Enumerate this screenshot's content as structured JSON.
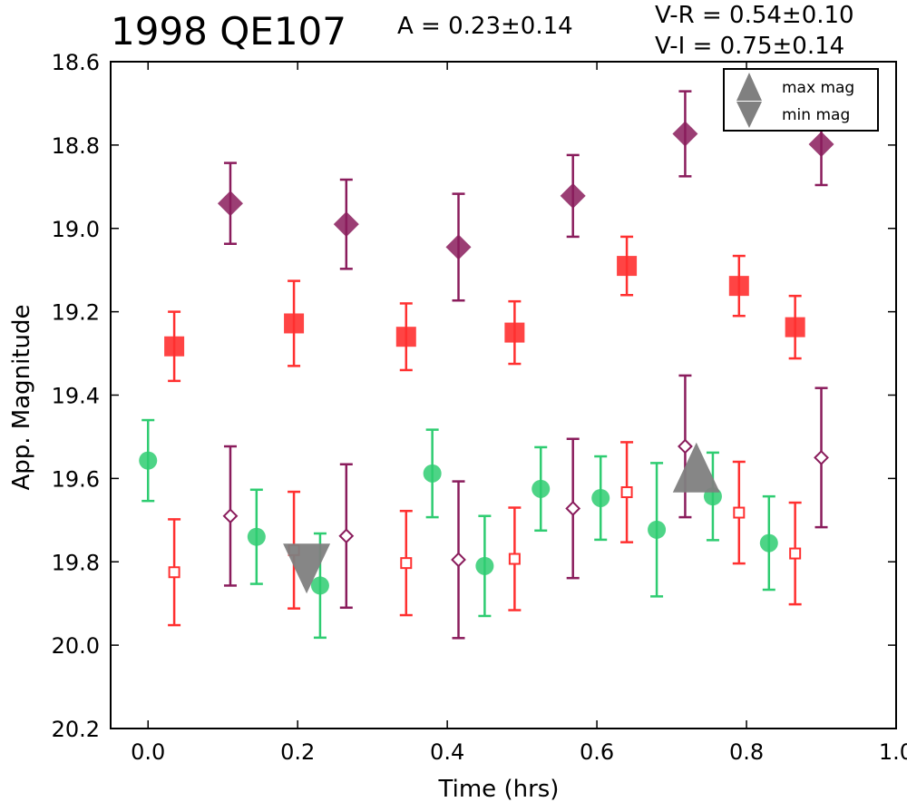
{
  "header": {
    "title": "1998 QE107",
    "amplitude": "A  = 0.23±0.14",
    "color_vr": "V-R  = 0.54±0.10",
    "color_vi": "V-I  = 0.75±0.14"
  },
  "chart_data": {
    "type": "scatter",
    "xlabel": "Time (hrs)",
    "ylabel": "App. Magnitude",
    "xlim": [
      -0.05,
      1.0
    ],
    "ylim": [
      20.2,
      18.6
    ],
    "y_inverted": true,
    "x_ticks": [
      "0.0",
      "0.2",
      "0.4",
      "0.6",
      "0.8",
      "1.0"
    ],
    "y_ticks": [
      "18.6",
      "18.8",
      "19.0",
      "19.2",
      "19.4",
      "19.6",
      "19.8",
      "20.0",
      "20.2"
    ],
    "legend": {
      "position": "top-right",
      "entries": [
        {
          "label": "max mag",
          "marker": "triangle-up",
          "color": "#808080"
        },
        {
          "label": "min mag",
          "marker": "triangle-down",
          "color": "#808080"
        }
      ]
    },
    "series": [
      {
        "marker": "diamond-filled",
        "color": "#8a1c5c",
        "points": [
          {
            "x": 0.11,
            "y": 18.94,
            "err": 0.097
          },
          {
            "x": 0.265,
            "y": 18.99,
            "err": 0.107
          },
          {
            "x": 0.415,
            "y": 19.045,
            "err": 0.128
          },
          {
            "x": 0.568,
            "y": 18.922,
            "err": 0.098
          },
          {
            "x": 0.718,
            "y": 18.773,
            "err": 0.102
          },
          {
            "x": 0.9,
            "y": 18.798,
            "err": 0.098
          }
        ]
      },
      {
        "marker": "square-filled",
        "color": "#ff3030",
        "points": [
          {
            "x": 0.035,
            "y": 19.283,
            "err": 0.083
          },
          {
            "x": 0.195,
            "y": 19.228,
            "err": 0.102
          },
          {
            "x": 0.345,
            "y": 19.26,
            "err": 0.08
          },
          {
            "x": 0.49,
            "y": 19.25,
            "err": 0.075
          },
          {
            "x": 0.64,
            "y": 19.09,
            "err": 0.07
          },
          {
            "x": 0.79,
            "y": 19.138,
            "err": 0.072
          },
          {
            "x": 0.865,
            "y": 19.237,
            "err": 0.075
          }
        ]
      },
      {
        "marker": "circle-filled",
        "color": "#2ecc71",
        "points": [
          {
            "x": 0.0,
            "y": 19.557,
            "err": 0.097
          },
          {
            "x": 0.145,
            "y": 19.74,
            "err": 0.113
          },
          {
            "x": 0.23,
            "y": 19.857,
            "err": 0.125
          },
          {
            "x": 0.38,
            "y": 19.588,
            "err": 0.105
          },
          {
            "x": 0.45,
            "y": 19.81,
            "err": 0.12
          },
          {
            "x": 0.525,
            "y": 19.625,
            "err": 0.1
          },
          {
            "x": 0.605,
            "y": 19.647,
            "err": 0.1
          },
          {
            "x": 0.68,
            "y": 19.723,
            "err": 0.16
          },
          {
            "x": 0.755,
            "y": 19.643,
            "err": 0.105
          },
          {
            "x": 0.83,
            "y": 19.755,
            "err": 0.112
          }
        ]
      },
      {
        "marker": "square-open",
        "color": "#ff3030",
        "points": [
          {
            "x": 0.035,
            "y": 19.825,
            "err": 0.127
          },
          {
            "x": 0.195,
            "y": 19.772,
            "err": 0.14
          },
          {
            "x": 0.345,
            "y": 19.803,
            "err": 0.125
          },
          {
            "x": 0.49,
            "y": 19.793,
            "err": 0.123
          },
          {
            "x": 0.64,
            "y": 19.633,
            "err": 0.12
          },
          {
            "x": 0.79,
            "y": 19.682,
            "err": 0.122
          },
          {
            "x": 0.865,
            "y": 19.78,
            "err": 0.122
          }
        ]
      },
      {
        "marker": "diamond-open",
        "color": "#8a1c5c",
        "points": [
          {
            "x": 0.11,
            "y": 19.69,
            "err": 0.167
          },
          {
            "x": 0.265,
            "y": 19.738,
            "err": 0.172
          },
          {
            "x": 0.415,
            "y": 19.795,
            "err": 0.188
          },
          {
            "x": 0.568,
            "y": 19.672,
            "err": 0.167
          },
          {
            "x": 0.718,
            "y": 19.523,
            "err": 0.17
          },
          {
            "x": 0.9,
            "y": 19.55,
            "err": 0.167
          }
        ]
      },
      {
        "marker": "triangle-up",
        "color": "#808080",
        "points": [
          {
            "x": 0.733,
            "y": 19.59
          }
        ]
      },
      {
        "marker": "triangle-down",
        "color": "#808080",
        "points": [
          {
            "x": 0.212,
            "y": 19.8
          }
        ]
      }
    ]
  }
}
